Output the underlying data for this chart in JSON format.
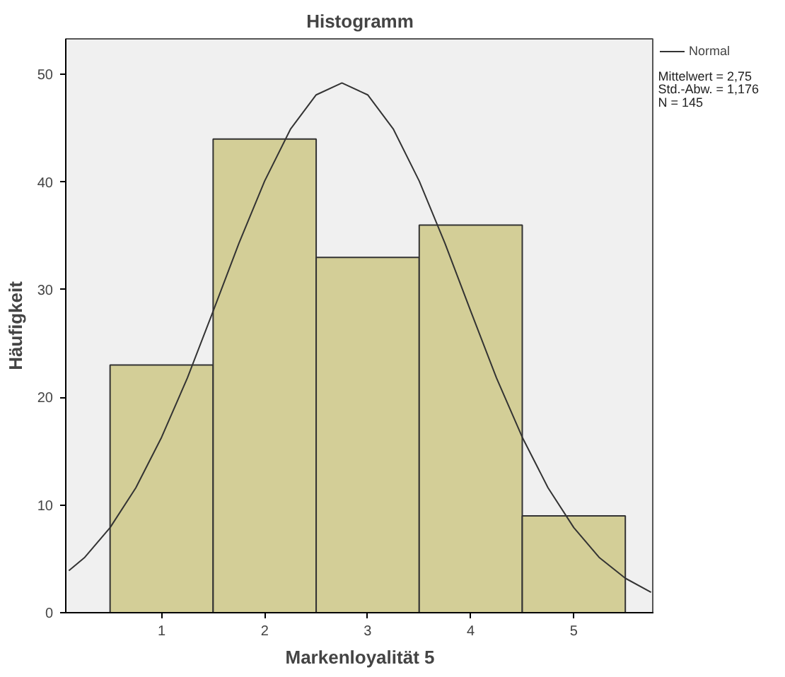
{
  "chart_data": {
    "type": "histogram",
    "title": "Histogramm",
    "xlabel": "Markenloyalität 5",
    "ylabel": "Häufigkeit",
    "bins": [
      0.5,
      1.5,
      2.5,
      3.5,
      4.5,
      5.5
    ],
    "values": [
      23,
      44,
      33,
      36,
      9
    ],
    "color": "#d3ce97",
    "xlim": [
      0.07,
      5.78
    ],
    "xticks": [
      1,
      2,
      3,
      4,
      5
    ],
    "ylim": [
      0,
      53.3
    ],
    "yticks": [
      0,
      10,
      20,
      30,
      40,
      50
    ],
    "grid": false,
    "legend": "top right",
    "series": [
      {
        "type": "line",
        "name": "Normal",
        "color": "#333333",
        "x": [
          0.1,
          0.25,
          0.5,
          0.75,
          1.0,
          1.25,
          1.5,
          1.75,
          2.0,
          2.25,
          2.5,
          2.75,
          3.0,
          3.25,
          3.5,
          3.75,
          4.0,
          4.25,
          4.5,
          4.75,
          5.0,
          5.25,
          5.5,
          5.75
        ],
        "values": [
          3.9,
          5.1,
          7.9,
          11.6,
          16.3,
          21.8,
          28.0,
          34.3,
          40.1,
          44.9,
          48.1,
          49.2,
          48.1,
          44.9,
          40.1,
          34.3,
          28.0,
          21.8,
          16.3,
          11.6,
          7.9,
          5.1,
          3.2,
          1.9
        ]
      }
    ],
    "annotations": [
      "Mittelwert = 2,75",
      "Std.-Abw. = 1,176",
      "N = 145"
    ]
  }
}
